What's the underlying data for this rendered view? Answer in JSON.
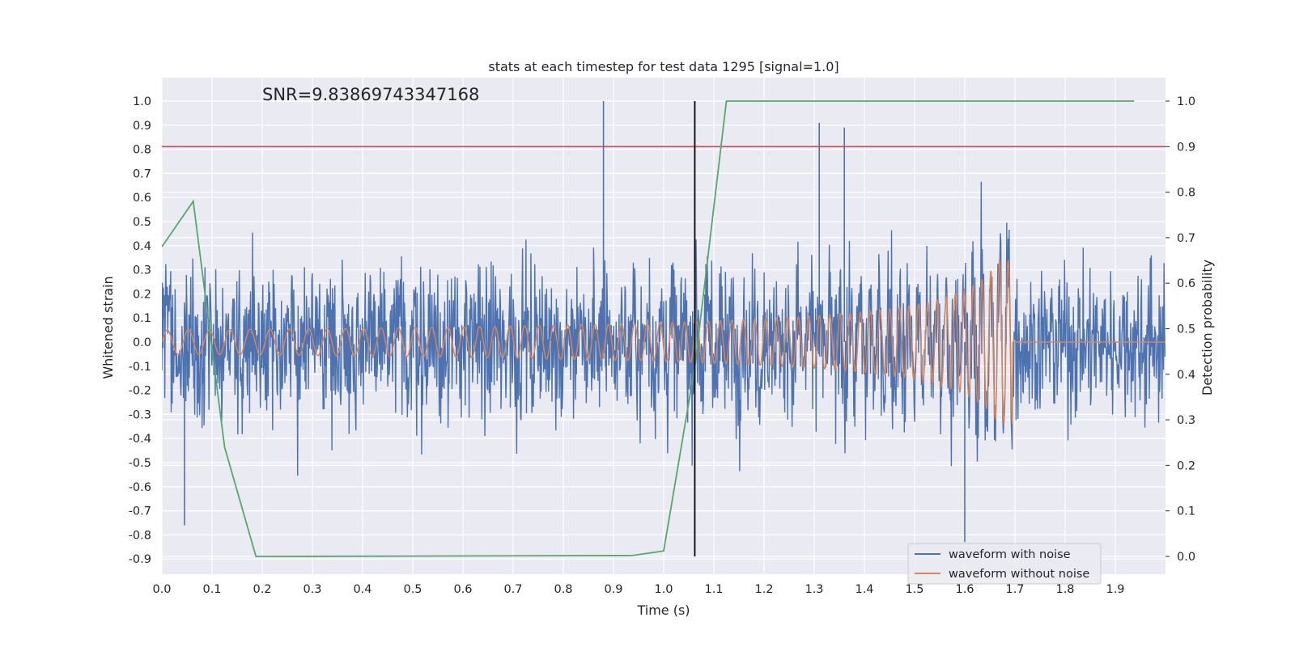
{
  "chart_data": {
    "type": "line",
    "title": "stats at each timestep for test data 1295 [signal=1.0]",
    "annotation": "SNR=9.83869743347168",
    "xlabel": "Time (s)",
    "ylabel": "Whitened strain",
    "y2label": "Detection probability",
    "xlim": [
      0.0,
      2.0
    ],
    "ylim": [
      -0.97,
      1.09
    ],
    "y2lim": [
      -0.045,
      1.045
    ],
    "x_ticks": [
      "0.0",
      "0.1",
      "0.2",
      "0.3",
      "0.4",
      "0.5",
      "0.6",
      "0.7",
      "0.8",
      "0.9",
      "1.0",
      "1.1",
      "1.2",
      "1.3",
      "1.4",
      "1.5",
      "1.6",
      "1.7",
      "1.8",
      "1.9"
    ],
    "y_ticks": [
      "-0.9",
      "-0.8",
      "-0.7",
      "-0.6",
      "-0.5",
      "-0.4",
      "-0.3",
      "-0.2",
      "-0.1",
      "0.0",
      "0.1",
      "0.2",
      "0.3",
      "0.4",
      "0.5",
      "0.6",
      "0.7",
      "0.8",
      "0.9",
      "1.0"
    ],
    "y2_ticks": [
      "0.0",
      "0.1",
      "0.2",
      "0.3",
      "0.4",
      "0.5",
      "0.6",
      "0.7",
      "0.8",
      "0.9",
      "1.0"
    ],
    "grid": true,
    "legend_position": "lower-right",
    "series": [
      {
        "name": "waveform with noise",
        "axis": "left",
        "color": "#4c72b0",
        "description_only": "noisy strain, roughly spanning -0.9 to 1.0",
        "peaks": [
          [
            0.88,
            1.0
          ],
          [
            1.31,
            0.91
          ],
          [
            1.36,
            0.89
          ],
          [
            1.6,
            -0.83
          ],
          [
            0.045,
            -0.76
          ]
        ]
      },
      {
        "name": "waveform without noise",
        "axis": "left",
        "color": "#dd8452",
        "description_only": "chirp signal with amplitude ~0.05 growing to ~0.32 near 1.68 s, then flat at 0"
      },
      {
        "name": "",
        "axis": "right",
        "color": "#55a868",
        "x": [
          0.0,
          0.0625,
          0.125,
          0.1875,
          0.25,
          0.9375,
          1.0,
          1.0625,
          1.125,
          1.9375
        ],
        "y": [
          0.68,
          0.78,
          0.24,
          0.0,
          0.0,
          0.002,
          0.012,
          0.42,
          1.0,
          1.0
        ]
      }
    ],
    "threshold": {
      "axis": "right",
      "value": 0.9,
      "color": "#c44e52"
    },
    "marker_line": {
      "x": 1.062,
      "y2_range": [
        0.0,
        1.0
      ],
      "color": "#000000"
    }
  }
}
